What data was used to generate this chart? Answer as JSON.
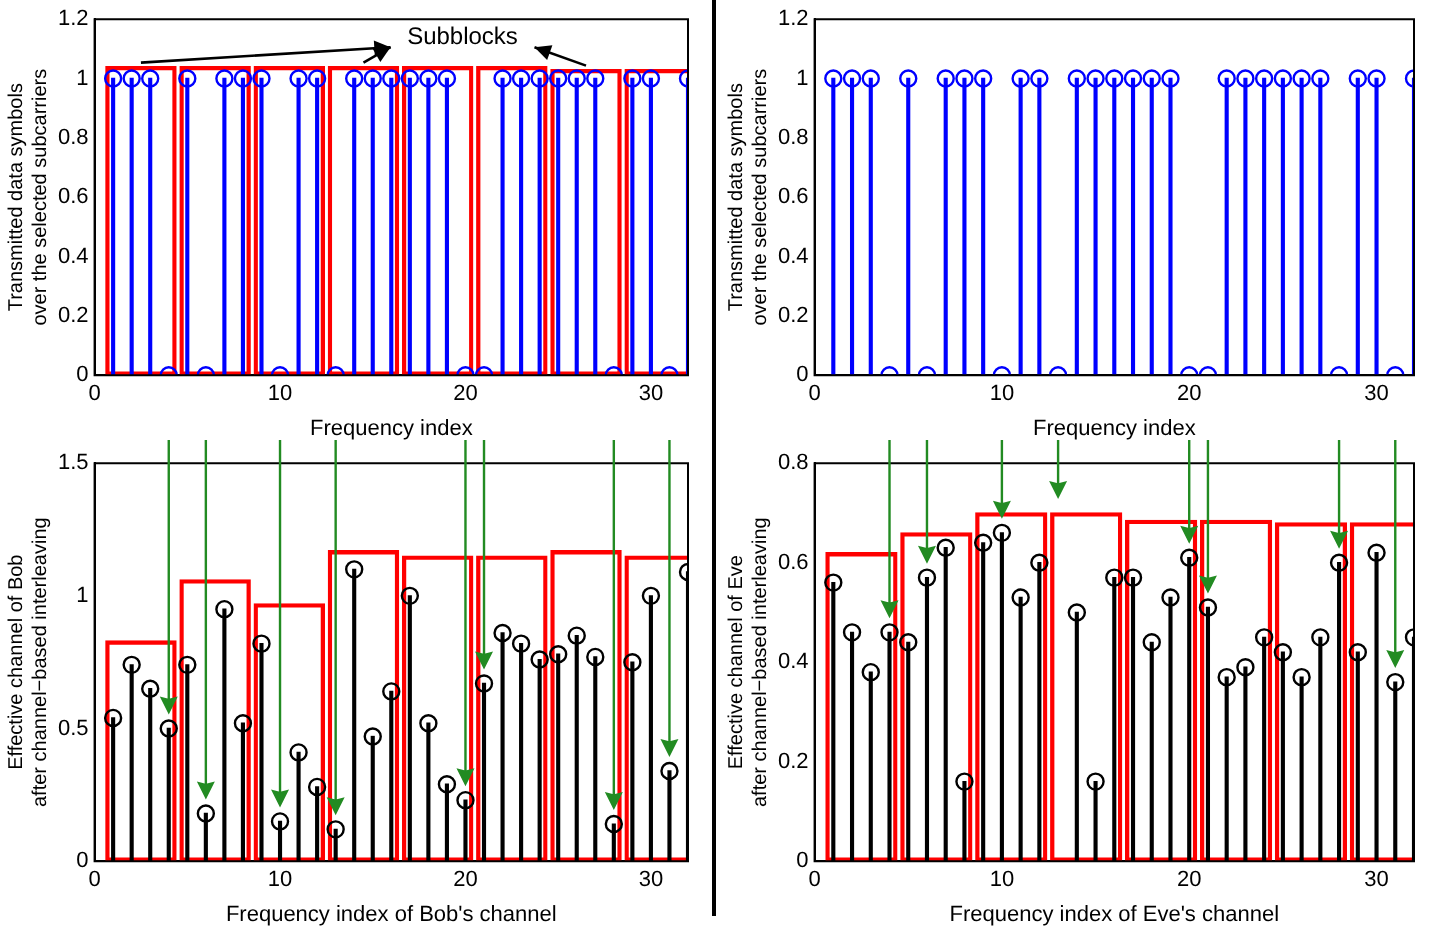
{
  "chart_data": [
    {
      "type": "lollipop",
      "xlabel": "Frequency index",
      "ylabel": "Transmitted data symbols\nover the selected subcarriers",
      "annotations": [
        "Subblocks"
      ],
      "marker": "circle",
      "grid": false,
      "legend": false,
      "xlim": [
        0,
        32
      ],
      "xticks": [
        0,
        10,
        20,
        30
      ],
      "ylim": [
        0,
        1.2
      ],
      "yticks": [
        0,
        0.2,
        0.4,
        0.6,
        0.8,
        1,
        1.2
      ],
      "x": [
        1,
        2,
        3,
        4,
        5,
        6,
        7,
        8,
        9,
        10,
        11,
        12,
        13,
        14,
        15,
        16,
        17,
        18,
        19,
        20,
        21,
        22,
        23,
        24,
        25,
        26,
        27,
        28,
        29,
        30,
        31,
        32
      ],
      "series": [
        {
          "color": "#0000ff",
          "values": [
            1,
            1,
            1,
            0,
            1,
            0,
            1,
            1,
            1,
            0,
            1,
            1,
            0,
            1,
            1,
            1,
            1,
            1,
            1,
            0,
            0,
            1,
            1,
            1,
            1,
            1,
            1,
            0,
            1,
            1,
            0,
            1
          ]
        },
        {
          "type": "bar",
          "color": "#ff0000",
          "x": [
            2.5,
            6.5,
            10.5,
            14.5,
            18.5,
            22.5,
            26.5,
            30.5
          ],
          "values": [
            1.04,
            1.04,
            1.04,
            1.04,
            1.04,
            1.04,
            1.03,
            1.03
          ]
        }
      ]
    },
    {
      "type": "lollipop",
      "xlabel": "Frequency index",
      "ylabel": "Transmitted data symbols\nover the selected subcarriers",
      "marker": "circle",
      "grid": false,
      "legend": false,
      "xlim": [
        0,
        32
      ],
      "xticks": [
        0,
        10,
        20,
        30
      ],
      "ylim": [
        0,
        1.2
      ],
      "yticks": [
        0,
        0.2,
        0.4,
        0.6,
        0.8,
        1,
        1.2
      ],
      "x": [
        1,
        2,
        3,
        4,
        5,
        6,
        7,
        8,
        9,
        10,
        11,
        12,
        13,
        14,
        15,
        16,
        17,
        18,
        19,
        20,
        21,
        22,
        23,
        24,
        25,
        26,
        27,
        28,
        29,
        30,
        31,
        32
      ],
      "series": [
        {
          "color": "#0000ff",
          "values": [
            1,
            1,
            1,
            0,
            1,
            0,
            1,
            1,
            1,
            0,
            1,
            1,
            0,
            1,
            1,
            1,
            1,
            1,
            1,
            0,
            0,
            1,
            1,
            1,
            1,
            1,
            1,
            0,
            1,
            1,
            0,
            1
          ]
        }
      ]
    },
    {
      "type": "lollipop",
      "xlabel": "Frequency index of Bob's channel",
      "ylabel": "Effective channel of Bob\nafter channel−based interleaving",
      "marker": "circle",
      "grid": false,
      "legend": false,
      "xlim": [
        0,
        32
      ],
      "xticks": [
        0,
        10,
        20,
        30
      ],
      "ylim": [
        0,
        1.5
      ],
      "yticks": [
        0,
        0.5,
        1,
        1.5
      ],
      "x": [
        1,
        2,
        3,
        4,
        5,
        6,
        7,
        8,
        9,
        10,
        11,
        12,
        13,
        14,
        15,
        16,
        17,
        18,
        19,
        20,
        21,
        22,
        23,
        24,
        25,
        26,
        27,
        28,
        29,
        30,
        31,
        32
      ],
      "series": [
        {
          "color": "#000000",
          "values": [
            0.54,
            0.74,
            0.65,
            0.5,
            0.74,
            0.18,
            0.95,
            0.52,
            0.82,
            0.15,
            0.41,
            0.28,
            0.12,
            1.1,
            0.47,
            0.64,
            1.0,
            0.52,
            0.29,
            0.23,
            0.67,
            0.86,
            0.82,
            0.76,
            0.78,
            0.85,
            0.77,
            0.14,
            0.75,
            1.0,
            0.34,
            1.09
          ]
        },
        {
          "type": "bar",
          "color": "#ff0000",
          "x": [
            2.5,
            6.5,
            10.5,
            14.5,
            18.5,
            22.5,
            26.5,
            30.5
          ],
          "values": [
            0.83,
            1.06,
            0.97,
            1.17,
            1.15,
            1.15,
            1.17,
            1.15
          ]
        }
      ]
    },
    {
      "type": "lollipop",
      "xlabel": "Frequency index of Eve's channel",
      "ylabel": "Effective channel of Eve\nafter channel−based interleaving",
      "marker": "circle",
      "grid": false,
      "legend": false,
      "xlim": [
        0,
        32
      ],
      "xticks": [
        0,
        10,
        20,
        30
      ],
      "ylim": [
        0,
        0.8
      ],
      "yticks": [
        0,
        0.2,
        0.4,
        0.6,
        0.8
      ],
      "x": [
        1,
        2,
        3,
        4,
        5,
        6,
        7,
        8,
        9,
        10,
        11,
        12,
        13,
        14,
        15,
        16,
        17,
        18,
        19,
        20,
        21,
        22,
        23,
        24,
        25,
        26,
        27,
        28,
        29,
        30,
        31,
        32
      ],
      "series": [
        {
          "color": "#000000",
          "values": [
            0.56,
            0.46,
            0.38,
            0.46,
            0.44,
            0.57,
            0.63,
            0.16,
            0.64,
            0.66,
            0.53,
            0.6,
            null,
            0.5,
            0.16,
            0.57,
            0.57,
            0.44,
            0.53,
            0.61,
            0.51,
            0.37,
            0.39,
            0.45,
            0.42,
            0.37,
            0.45,
            0.6,
            0.42,
            0.62,
            0.36,
            0.45
          ]
        },
        {
          "type": "bar",
          "color": "#ff0000",
          "x": [
            2.5,
            6.5,
            10.5,
            14.5,
            18.5,
            22.5,
            26.5,
            30.5
          ],
          "values": [
            0.62,
            0.66,
            0.7,
            0.7,
            0.685,
            0.685,
            0.68,
            0.68
          ]
        }
      ]
    }
  ]
}
